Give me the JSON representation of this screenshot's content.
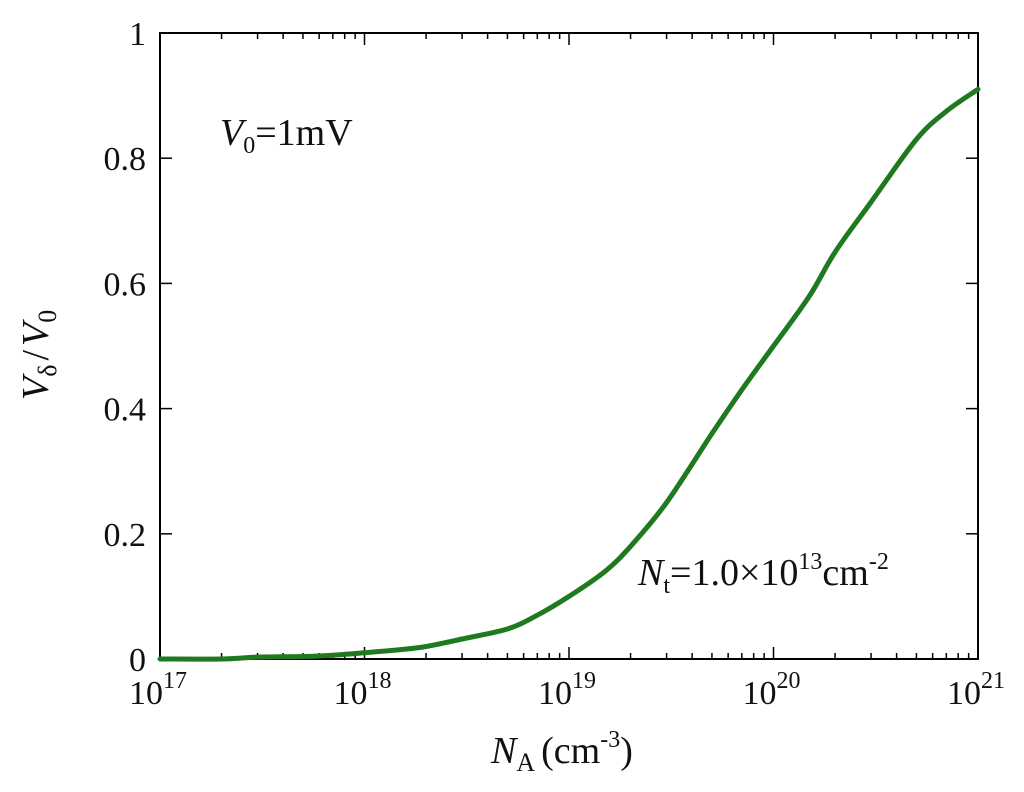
{
  "chart_data": {
    "type": "line",
    "x_scale": "log",
    "xlim": [
      1e+17,
      1e+21
    ],
    "ylim": [
      0,
      1
    ],
    "grid": false,
    "xlabel": {
      "main": "N",
      "sub": "A",
      "unit_prefix": "(cm",
      "unit_sup": "-3",
      "unit_suffix": ")"
    },
    "ylabel": {
      "main": "V",
      "sub": "δ",
      "slash": "/",
      "main2": "V",
      "sub2": "0"
    },
    "x_ticks": [
      {
        "base": "10",
        "exp": "17",
        "value": 1e+17
      },
      {
        "base": "10",
        "exp": "18",
        "value": 1e+18
      },
      {
        "base": "10",
        "exp": "19",
        "value": 1e+19
      },
      {
        "base": "10",
        "exp": "20",
        "value": 1e+20
      },
      {
        "base": "10",
        "exp": "21",
        "value": 1e+21
      }
    ],
    "y_ticks": [
      "0",
      "0.2",
      "0.4",
      "0.6",
      "0.8",
      "1"
    ],
    "annotations": {
      "v0": {
        "main": "V",
        "sub": "0",
        "rest": "=1mV"
      },
      "nt": {
        "main": "N",
        "sub": "t",
        "rest": "=1.0×10",
        "sup": "13",
        "unit": "cm",
        "unit_sup": "-2"
      }
    },
    "series": [
      {
        "color": "#1f7a1f",
        "x": [
          1e+17,
          2e+17,
          3e+17,
          5e+17,
          7e+17,
          1e+18,
          1.5e+18,
          2e+18,
          3e+18,
          5e+18,
          7e+18,
          1e+19,
          1.5e+19,
          2e+19,
          3e+19,
          5e+19,
          7e+19,
          1e+20,
          1.5e+20,
          2e+20,
          3e+20,
          5e+20,
          7e+20,
          1e+21
        ],
        "y": [
          0.0,
          0.0,
          0.003,
          0.004,
          0.006,
          0.01,
          0.015,
          0.02,
          0.032,
          0.048,
          0.07,
          0.1,
          0.14,
          0.18,
          0.25,
          0.36,
          0.43,
          0.5,
          0.58,
          0.65,
          0.73,
          0.83,
          0.875,
          0.91
        ]
      }
    ]
  }
}
